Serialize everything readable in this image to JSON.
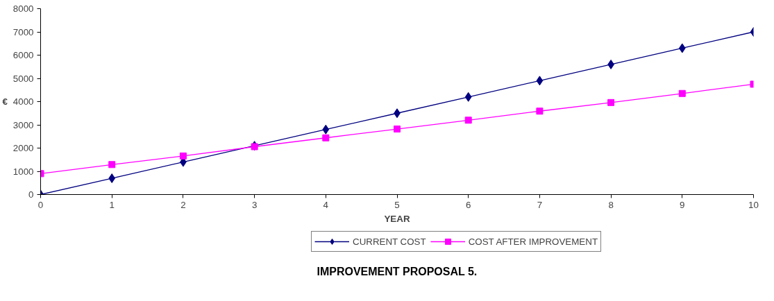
{
  "chart_data": {
    "type": "line",
    "title": "IMPROVEMENT PROPOSAL 5.",
    "xlabel": "YEAR",
    "ylabel": "€",
    "x": [
      0,
      1,
      2,
      3,
      4,
      5,
      6,
      7,
      8,
      9,
      10
    ],
    "series": [
      {
        "name": "CURRENT COST",
        "color": "#000080",
        "marker": "diamond",
        "values": [
          0,
          700,
          1400,
          2100,
          2800,
          3500,
          4200,
          4900,
          5600,
          6300,
          7000
        ]
      },
      {
        "name": "COST AFTER IMPROVEMENT",
        "color": "#ff00ff",
        "marker": "square",
        "values": [
          900,
          1290,
          1660,
          2060,
          2440,
          2820,
          3200,
          3590,
          3960,
          4350,
          4750
        ]
      }
    ],
    "xlim": [
      0,
      10
    ],
    "xticks": [
      0,
      1,
      2,
      3,
      4,
      5,
      6,
      7,
      8,
      9,
      10
    ],
    "ylim": [
      0,
      8000
    ],
    "yticks": [
      0,
      1000,
      2000,
      3000,
      4000,
      5000,
      6000,
      7000,
      8000
    ],
    "grid": false,
    "legend": "bottom",
    "line_style": "solid"
  }
}
